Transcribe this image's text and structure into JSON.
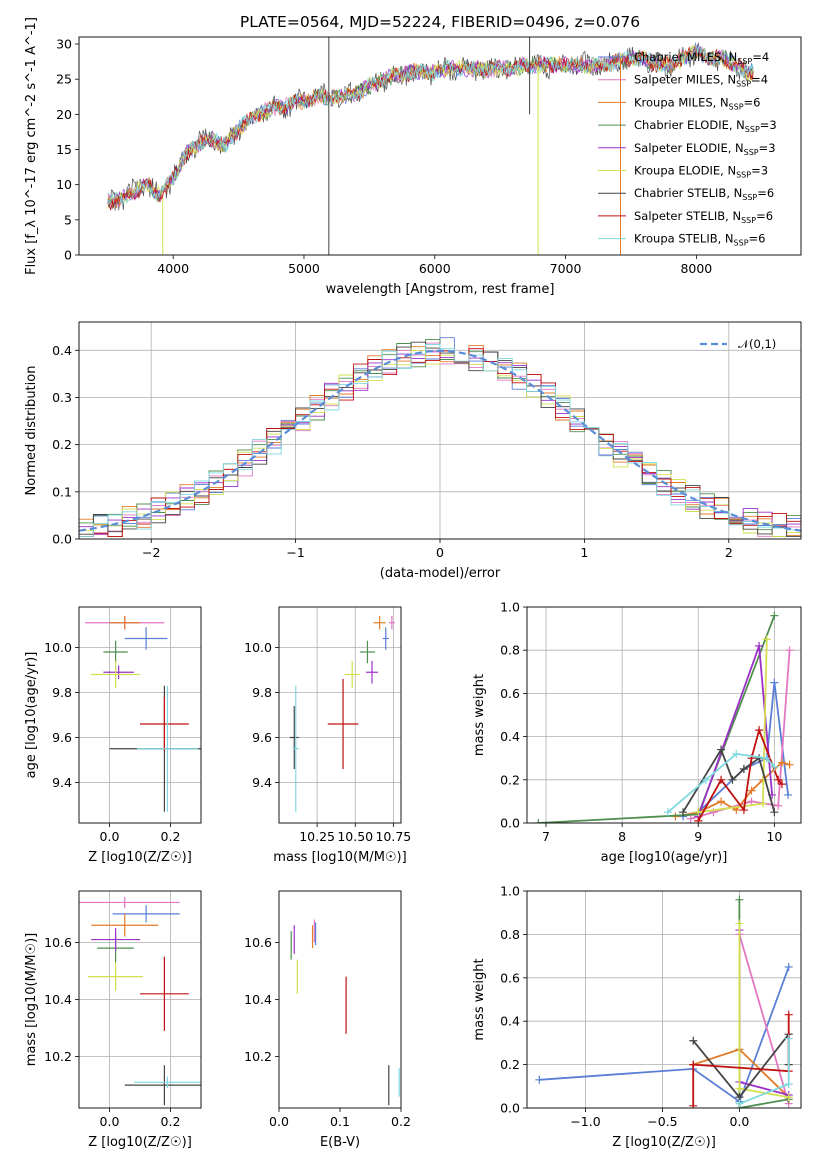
{
  "figure": {
    "title": "PLATE=0564, MJD=52224, FIBERID=0496, z=0.076"
  },
  "models": [
    {
      "label": "Chabrier MILES, N",
      "n": "4",
      "color": "#5a7fd6"
    },
    {
      "label": "Salpeter MILES, N",
      "n": "4",
      "color": "#e377c2"
    },
    {
      "label": "Kroupa MILES, N",
      "n": "6",
      "color": "#e07b2a"
    },
    {
      "label": "Chabrier ELODIE, N",
      "n": "3",
      "color": "#4f8f4f"
    },
    {
      "label": "Salpeter ELODIE, N",
      "n": "3",
      "color": "#9b30c8"
    },
    {
      "label": "Kroupa ELODIE, N",
      "n": "3",
      "color": "#d4df50"
    },
    {
      "label": "Chabrier STELIB, N",
      "n": "6",
      "color": "#444444"
    },
    {
      "label": "Salpeter STELIB, N",
      "n": "6",
      "color": "#c01010"
    },
    {
      "label": "Kroupa STELIB, N",
      "n": "6",
      "color": "#7fd8e0"
    }
  ],
  "legend_subscript": "SSP",
  "chart_data": [
    {
      "id": "spectrum",
      "type": "line",
      "xlabel": "wavelength [Angstrom, rest frame]",
      "ylabel": "Flux [f_λ 10^-17 erg cm^-2 s^-1 A^-1]",
      "xlim": [
        3280,
        8800
      ],
      "ylim": [
        0,
        31
      ],
      "xticks": [
        4000,
        5000,
        6000,
        7000,
        8000
      ],
      "yticks": [
        0,
        5,
        10,
        15,
        20,
        25,
        30
      ],
      "grid": false,
      "legend": "right",
      "x": [
        3500,
        3600,
        3700,
        3800,
        3900,
        4000,
        4100,
        4200,
        4300,
        4400,
        4500,
        4600,
        4700,
        4800,
        4900,
        5000,
        5100,
        5200,
        5300,
        5400,
        5500,
        5600,
        5700,
        5800,
        5900,
        6000,
        6100,
        6200,
        6300,
        6400,
        6500,
        6600,
        6700,
        6800,
        6900,
        7000,
        7100,
        7200,
        7300,
        7400,
        7500,
        7600,
        7700,
        7800,
        7900,
        8000,
        8100,
        8200,
        8300,
        8400
      ],
      "y": [
        7.5,
        8.0,
        9.0,
        10.0,
        8.5,
        11.0,
        14.5,
        16.0,
        16.5,
        15.5,
        18.0,
        19.5,
        20.5,
        21.0,
        21.5,
        22.0,
        22.5,
        22.5,
        22.5,
        23.0,
        24.0,
        25.0,
        25.5,
        26.0,
        26.0,
        26.0,
        26.5,
        26.5,
        26.5,
        26.5,
        26.5,
        26.5,
        27.0,
        27.0,
        27.0,
        27.0,
        27.0,
        27.0,
        27.0,
        27.5,
        28.0,
        28.0,
        27.0,
        27.0,
        28.0,
        29.0,
        28.0,
        28.0,
        27.0,
        26.0
      ]
    },
    {
      "id": "residuals",
      "type": "histogram",
      "xlabel": "(data-model)/error",
      "ylabel": "Normed distribution",
      "xlim": [
        -2.5,
        2.5
      ],
      "ylim": [
        0,
        0.46
      ],
      "xticks": [
        -2,
        -1,
        0,
        1,
        2
      ],
      "yticks": [
        0.0,
        0.1,
        0.2,
        0.3,
        0.4
      ],
      "grid": true,
      "legend": "top-right",
      "reference_curve": {
        "name": "𝒩(0,1)",
        "mean": 0,
        "sigma": 1
      }
    },
    {
      "id": "age-vs-Z",
      "type": "scatter",
      "xlabel": "Z [log10(Z/Z☉)]",
      "ylabel": "age  [log10(age/yr)]",
      "xlim": [
        -0.1,
        0.3
      ],
      "ylim": [
        9.22,
        10.18
      ],
      "xticks": [
        0.0,
        0.2
      ],
      "yticks": [
        9.4,
        9.6,
        9.8,
        10.0
      ],
      "grid": true,
      "points": [
        {
          "x": 0.12,
          "y": 10.04,
          "xerr": 0.07,
          "yerr": 0.05
        },
        {
          "x": 0.05,
          "y": 10.11,
          "xerr": 0.13,
          "yerr": 0.03
        },
        {
          "x": 0.05,
          "y": 10.11,
          "xerr": 0.05,
          "yerr": 0.03
        },
        {
          "x": 0.02,
          "y": 9.98,
          "xerr": 0.04,
          "yerr": 0.05
        },
        {
          "x": 0.03,
          "y": 9.89,
          "xerr": 0.05,
          "yerr": 0.03
        },
        {
          "x": 0.02,
          "y": 9.88,
          "xerr": 0.08,
          "yerr": 0.06
        },
        {
          "x": 0.18,
          "y": 9.55,
          "xerr": 0.18,
          "yerr": 0.28
        },
        {
          "x": 0.18,
          "y": 9.66,
          "xerr": 0.08,
          "yerr": 0.12
        },
        {
          "x": 0.19,
          "y": 9.55,
          "xerr": 0.1,
          "yerr": 0.28
        }
      ]
    },
    {
      "id": "age-vs-mass",
      "type": "scatter",
      "xlabel": "mass [log10(M/M☉)]",
      "ylabel": "",
      "xlim": [
        10.0,
        10.8
      ],
      "ylim": [
        9.22,
        10.18
      ],
      "xticks": [
        10.25,
        10.5,
        10.75
      ],
      "yticks": [
        9.4,
        9.6,
        9.8,
        10.0
      ],
      "grid": true,
      "points": [
        {
          "x": 10.7,
          "y": 10.04,
          "xerr": 0.02,
          "yerr": 0.05
        },
        {
          "x": 10.74,
          "y": 10.11,
          "xerr": 0.02,
          "yerr": 0.03
        },
        {
          "x": 10.66,
          "y": 10.11,
          "xerr": 0.04,
          "yerr": 0.03
        },
        {
          "x": 10.58,
          "y": 9.98,
          "xerr": 0.05,
          "yerr": 0.05
        },
        {
          "x": 10.61,
          "y": 9.89,
          "xerr": 0.04,
          "yerr": 0.05
        },
        {
          "x": 10.48,
          "y": 9.88,
          "xerr": 0.05,
          "yerr": 0.06
        },
        {
          "x": 10.1,
          "y": 9.6,
          "xerr": 0.03,
          "yerr": 0.14
        },
        {
          "x": 10.42,
          "y": 9.66,
          "xerr": 0.1,
          "yerr": 0.2
        },
        {
          "x": 10.11,
          "y": 9.55,
          "xerr": 0.02,
          "yerr": 0.28
        }
      ]
    },
    {
      "id": "mass-weight-vs-age",
      "type": "line",
      "xlabel": "age  [log10(age/yr)]",
      "ylabel": "mass weight",
      "xlim": [
        6.75,
        10.35
      ],
      "ylim": [
        0,
        1.0
      ],
      "xticks": [
        7,
        8,
        9,
        10
      ],
      "yticks": [
        0.0,
        0.2,
        0.4,
        0.6,
        0.8,
        1.0
      ],
      "grid": true,
      "series": [
        {
          "x": [
            8.8,
            9.0,
            9.6,
            9.9,
            10.0,
            10.18
          ],
          "y": [
            0.03,
            0.05,
            0.25,
            0.3,
            0.65,
            0.13
          ]
        },
        {
          "x": [
            8.9,
            9.2,
            9.7,
            10.05,
            10.2
          ],
          "y": [
            0.02,
            0.05,
            0.1,
            0.08,
            0.8
          ]
        },
        {
          "x": [
            8.7,
            9.0,
            9.3,
            9.5,
            9.7,
            9.85,
            10.1,
            10.2
          ],
          "y": [
            0.03,
            0.05,
            0.1,
            0.06,
            0.15,
            0.2,
            0.28,
            0.27
          ]
        },
        {
          "x": [
            6.9,
            9.0,
            10.0
          ],
          "y": [
            0.0,
            0.04,
            0.96
          ]
        },
        {
          "x": [
            9.0,
            9.8,
            9.97
          ],
          "y": [
            0.03,
            0.82,
            0.13
          ]
        },
        {
          "x": [
            9.0,
            9.85,
            9.9
          ],
          "y": [
            0.05,
            0.09,
            0.85
          ]
        },
        {
          "x": [
            8.8,
            9.3,
            9.45,
            9.6,
            9.8,
            10.0
          ],
          "y": [
            0.05,
            0.34,
            0.2,
            0.25,
            0.3,
            0.05
          ]
        },
        {
          "x": [
            9.0,
            9.3,
            9.6,
            9.7,
            9.8,
            10.05,
            10.1
          ],
          "y": [
            0.01,
            0.2,
            0.06,
            0.3,
            0.43,
            0.2,
            0.18
          ]
        },
        {
          "x": [
            8.6,
            9.1,
            9.5,
            9.9,
            10.0
          ],
          "y": [
            0.05,
            0.2,
            0.32,
            0.3,
            0.26
          ]
        }
      ]
    },
    {
      "id": "mass-vs-Z",
      "type": "scatter",
      "xlabel": "Z [log10(Z/Z☉)]",
      "ylabel": "mass [log10(M/M☉)]",
      "xlim": [
        -0.1,
        0.3
      ],
      "ylim": [
        10.02,
        10.78
      ],
      "xticks": [
        0.0,
        0.2
      ],
      "yticks": [
        10.2,
        10.4,
        10.6
      ],
      "grid": true,
      "points": [
        {
          "x": 0.12,
          "y": 10.7,
          "xerr": 0.11,
          "yerr": 0.03
        },
        {
          "x": 0.05,
          "y": 10.74,
          "xerr": 0.18,
          "yerr": 0.02
        },
        {
          "x": 0.05,
          "y": 10.66,
          "xerr": 0.11,
          "yerr": 0.04
        },
        {
          "x": 0.02,
          "y": 10.58,
          "xerr": 0.06,
          "yerr": 0.05
        },
        {
          "x": 0.02,
          "y": 10.61,
          "xerr": 0.08,
          "yerr": 0.04
        },
        {
          "x": 0.02,
          "y": 10.48,
          "xerr": 0.09,
          "yerr": 0.05
        },
        {
          "x": 0.18,
          "y": 10.1,
          "xerr": 0.13,
          "yerr": 0.07
        },
        {
          "x": 0.18,
          "y": 10.42,
          "xerr": 0.08,
          "yerr": 0.13
        },
        {
          "x": 0.19,
          "y": 10.11,
          "xerr": 0.11,
          "yerr": 0.02
        }
      ]
    },
    {
      "id": "mass-vs-EBV",
      "type": "scatter",
      "xlabel": "E(B-V)",
      "ylabel": "",
      "xlim": [
        0.0,
        0.2
      ],
      "ylim": [
        10.02,
        10.78
      ],
      "xticks": [
        0.0,
        0.1,
        0.2
      ],
      "yticks": [
        10.2,
        10.4,
        10.6
      ],
      "grid": false,
      "points": [
        {
          "x": 0.06,
          "y": 10.63,
          "xerr": 0.0,
          "yerr": 0.04
        },
        {
          "x": 0.058,
          "y": 10.64,
          "xerr": 0.0,
          "yerr": 0.04
        },
        {
          "x": 0.055,
          "y": 10.62,
          "xerr": 0.0,
          "yerr": 0.04
        },
        {
          "x": 0.02,
          "y": 10.59,
          "xerr": 0.0,
          "yerr": 0.05
        },
        {
          "x": 0.025,
          "y": 10.61,
          "xerr": 0.0,
          "yerr": 0.05
        },
        {
          "x": 0.03,
          "y": 10.48,
          "xerr": 0.0,
          "yerr": 0.06
        },
        {
          "x": 0.18,
          "y": 10.1,
          "xerr": 0.0,
          "yerr": 0.07
        },
        {
          "x": 0.11,
          "y": 10.38,
          "xerr": 0.0,
          "yerr": 0.1
        },
        {
          "x": 0.197,
          "y": 10.11,
          "xerr": 0.0,
          "yerr": 0.05
        }
      ]
    },
    {
      "id": "mass-weight-vs-Z",
      "type": "line",
      "xlabel": "Z [log10(Z/Z☉)]",
      "ylabel": "mass weight",
      "xlim": [
        -1.38,
        0.4
      ],
      "ylim": [
        0,
        1.0
      ],
      "xticks": [
        -1.0,
        -0.5,
        0.0
      ],
      "yticks": [
        0.0,
        0.2,
        0.4,
        0.6,
        0.8,
        1.0
      ],
      "grid": true,
      "series": [
        {
          "x": [
            -1.3,
            -0.3,
            0.0,
            0.32
          ],
          "y": [
            0.13,
            0.18,
            0.03,
            0.65
          ]
        },
        {
          "x": [
            0.0,
            0.32
          ],
          "y": [
            0.8,
            0.02
          ]
        },
        {
          "x": [
            -0.3,
            0.0,
            0.32
          ],
          "y": [
            0.2,
            0.27,
            0.05
          ]
        },
        {
          "x": [
            0.0,
            0.0,
            0.32
          ],
          "y": [
            0.96,
            0.0,
            0.04
          ]
        },
        {
          "x": [
            0.0,
            0.0,
            0.32
          ],
          "y": [
            0.82,
            0.12,
            0.06
          ]
        },
        {
          "x": [
            0.0,
            0.0,
            0.32
          ],
          "y": [
            0.85,
            0.09,
            0.05
          ]
        },
        {
          "x": [
            -0.3,
            0.0,
            0.32,
            0.32
          ],
          "y": [
            0.31,
            0.05,
            0.34,
            0.2
          ]
        },
        {
          "x": [
            -0.3,
            -0.3,
            0.32,
            0.32
          ],
          "y": [
            0.01,
            0.2,
            0.17,
            0.43
          ]
        },
        {
          "x": [
            0.0,
            0.32,
            0.32
          ],
          "y": [
            0.02,
            0.11,
            0.32
          ]
        }
      ]
    }
  ]
}
